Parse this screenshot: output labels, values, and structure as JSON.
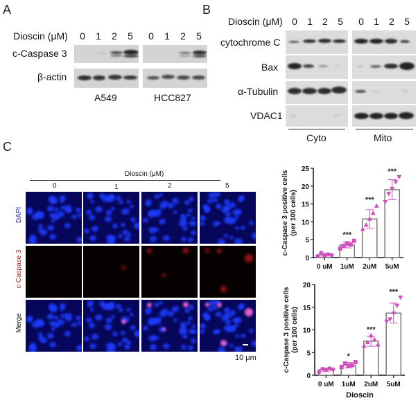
{
  "panelA": {
    "letter": "A",
    "treatment_label": "Dioscin (μM)",
    "lanes_a549": [
      "0",
      "1",
      "2",
      "5"
    ],
    "lanes_hcc827": [
      "0",
      "1",
      "2",
      "5"
    ],
    "rows": [
      "c-Caspase 3",
      "β-actin"
    ],
    "cell_lines": [
      "A549",
      "HCC827"
    ]
  },
  "panelB": {
    "letter": "B",
    "treatment_label": "Dioscin (μM)",
    "lanes_cyto": [
      "0",
      "1",
      "2",
      "5"
    ],
    "lanes_mito": [
      "0",
      "1",
      "2",
      "5"
    ],
    "rows": [
      "cytochrome C",
      "Bax",
      "α-Tubulin",
      "VDAC1"
    ],
    "fractions": [
      "Cyto",
      "Mito"
    ]
  },
  "panelC": {
    "letter": "C",
    "treatment_label": "Dioscin (μM)",
    "columns": [
      "0",
      "1",
      "2",
      "5"
    ],
    "rows": [
      "DAPI",
      "c-Caspase 3",
      "Merge"
    ],
    "row_colors": [
      "#1a1ad0",
      "#c02020",
      "#111111"
    ],
    "scale_bar": "10 μm"
  },
  "chart_data": [
    {
      "type": "bar",
      "title": "",
      "categories": [
        "0 uM",
        "1uM",
        "2uM",
        "5uM"
      ],
      "values": [
        0.8,
        3.5,
        10.8,
        19.0
      ],
      "error": [
        0.4,
        0.8,
        2.6,
        2.8
      ],
      "points": [
        [
          0.4,
          1.3,
          0.6,
          0.9,
          0.7
        ],
        [
          2.5,
          3.3,
          4.0,
          3.6,
          4.7
        ],
        [
          8.0,
          9.2,
          10.9,
          12.5,
          14.5
        ],
        [
          15.5,
          17.8,
          19.2,
          21.1,
          22.5
        ]
      ],
      "significance": [
        "",
        "***",
        "***",
        "***"
      ],
      "xlabel": "Dioscin",
      "ylabel": "c-Caspase 3 positive cells\n(per 100 cells)",
      "ylim": [
        0,
        25
      ],
      "yticks": [
        0,
        5,
        10,
        15,
        20,
        25
      ],
      "marker_color": "#d050c0",
      "grid": false
    },
    {
      "type": "bar",
      "title": "",
      "categories": [
        "0 uM",
        "1uM",
        "2uM",
        "5uM"
      ],
      "values": [
        1.2,
        2.2,
        7.5,
        13.7
      ],
      "error": [
        0.4,
        0.6,
        1.1,
        2.2
      ],
      "points": [
        [
          0.7,
          1.4,
          1.2,
          1.5,
          1.3
        ],
        [
          1.8,
          2.6,
          2.1,
          2.2,
          2.9
        ],
        [
          6.5,
          7.3,
          8.8,
          7.9,
          6.8
        ],
        [
          11.8,
          12.3,
          13.6,
          15.3,
          17.1
        ]
      ],
      "significance": [
        "",
        "*",
        "***",
        "***"
      ],
      "xlabel": "Dioscin",
      "ylabel": "c-Caspase 3 positive cells\n(per 100 cells)",
      "ylim": [
        0,
        20
      ],
      "yticks": [
        0,
        5,
        10,
        15,
        20
      ],
      "marker_color": "#d050c0",
      "grid": false
    }
  ]
}
